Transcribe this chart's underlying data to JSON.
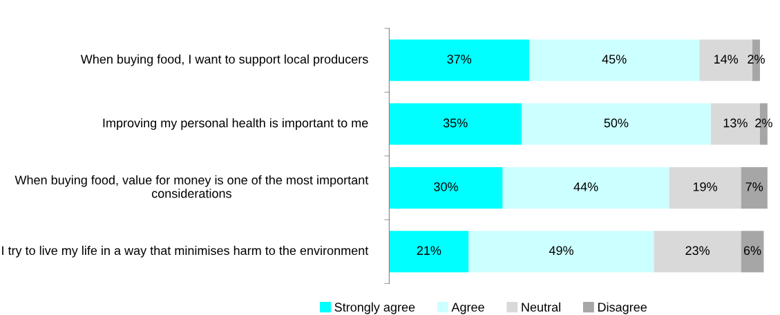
{
  "chart_data": {
    "type": "bar",
    "orientation": "horizontal",
    "stacked": true,
    "legend": "bottom",
    "grid": false,
    "categories": [
      "When buying food, I want to support local producers",
      "Improving my personal health is important to me",
      "When buying food, value for money is one of the most important considerations",
      "I try to live my life in a way that minimises harm to the environment"
    ],
    "series": [
      {
        "name": "Strongly agree",
        "color": "#00ffff",
        "values": [
          37,
          35,
          30,
          21
        ],
        "value_labels": [
          "37%",
          "35%",
          "30%",
          "21%"
        ]
      },
      {
        "name": "Agree",
        "color": "#ccffff",
        "values": [
          45,
          50,
          44,
          49
        ],
        "value_labels": [
          "45%",
          "50%",
          "44%",
          "49%"
        ]
      },
      {
        "name": "Neutral",
        "color": "#d9d9d9",
        "values": [
          14,
          13,
          19,
          23
        ],
        "value_labels": [
          "14%",
          "13%",
          "19%",
          "23%"
        ]
      },
      {
        "name": "Disagree",
        "color": "#a6a6a6",
        "values": [
          2,
          2,
          7,
          6
        ],
        "value_labels": [
          "2%",
          "2%",
          "7%",
          "6%"
        ]
      }
    ]
  }
}
